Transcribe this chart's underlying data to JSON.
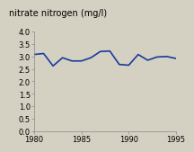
{
  "title": "nitrate nitrogen (mg/l)",
  "x_values": [
    1980,
    1981,
    1982,
    1983,
    1984,
    1985,
    1986,
    1987,
    1988,
    1989,
    1990,
    1991,
    1992,
    1993,
    1994,
    1995
  ],
  "y_values": [
    3.08,
    3.12,
    2.62,
    2.95,
    2.82,
    2.82,
    2.95,
    3.2,
    3.22,
    2.68,
    2.65,
    3.08,
    2.85,
    2.98,
    3.0,
    2.92
  ],
  "line_color": "#1a3a9e",
  "line_width": 1.2,
  "background_color": "#d4d1c2",
  "xlim": [
    1980,
    1995
  ],
  "ylim": [
    0.0,
    4.0
  ],
  "xticks": [
    1980,
    1985,
    1990,
    1995
  ],
  "yticks": [
    0.0,
    0.5,
    1.0,
    1.5,
    2.0,
    2.5,
    3.0,
    3.5,
    4.0
  ],
  "title_fontsize": 7.0,
  "tick_fontsize": 6.0
}
